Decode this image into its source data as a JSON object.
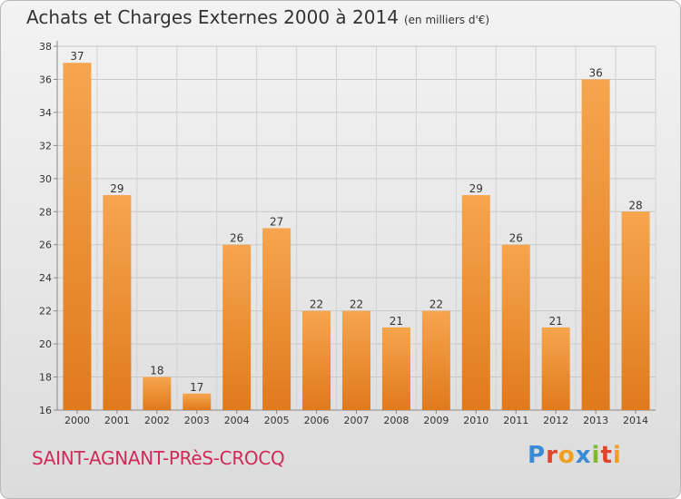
{
  "header": {
    "title": "Achats et Charges Externes 2000 à 2014",
    "subtitle": "(en milliers d'€)"
  },
  "footer": {
    "commune": "SAINT-AGNANT-PRèS-CROCQ",
    "logo": "Proxiti"
  },
  "colors": {
    "bar_top": "#f6a54e",
    "bar_bottom": "#e07a1c",
    "title_text": "#333333",
    "commune_text": "#d02a5a",
    "logo_letters": [
      "#3a8ad6",
      "#e0452c",
      "#f0a020",
      "#3a8ad6",
      "#7dbb2a",
      "#e0452c",
      "#f0a020"
    ]
  },
  "chart_data": {
    "type": "bar",
    "categories": [
      "2000",
      "2001",
      "2002",
      "2003",
      "2004",
      "2005",
      "2006",
      "2007",
      "2008",
      "2009",
      "2010",
      "2011",
      "2012",
      "2013",
      "2014"
    ],
    "values": [
      37,
      29,
      18,
      17,
      26,
      27,
      22,
      22,
      21,
      22,
      29,
      26,
      21,
      36,
      28
    ],
    "title": "Achats et Charges Externes 2000 à 2014",
    "subtitle": "(en milliers d'€)",
    "ylim": [
      16,
      38
    ],
    "yticks": [
      16,
      18,
      20,
      22,
      24,
      26,
      28,
      30,
      32,
      34,
      36,
      38
    ],
    "grid": true,
    "data_labels": true
  }
}
